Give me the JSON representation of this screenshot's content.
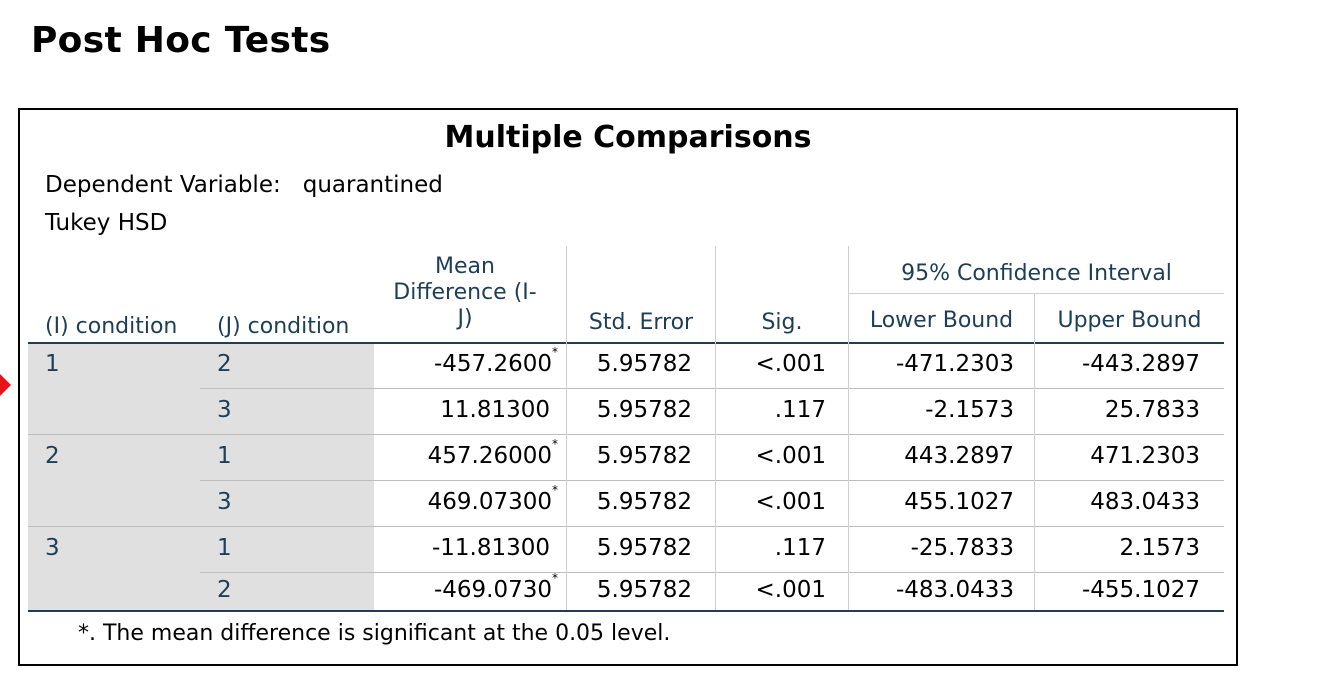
{
  "section_title": "Post Hoc Tests",
  "table": {
    "title": "Multiple Comparisons",
    "dependent_variable_label": "Dependent Variable:",
    "dependent_variable": "quarantined",
    "method": "Tukey HSD",
    "headers": {
      "i_condition": "(I) condition",
      "j_condition": "(J) condition",
      "mean_diff_1": "Mean",
      "mean_diff_2": "Difference (I-",
      "mean_diff_3": "J)",
      "std_error": "Std. Error",
      "sig": "Sig.",
      "ci_group": "95% Confidence Interval",
      "lower": "Lower Bound",
      "upper": "Upper Bound"
    },
    "groups": [
      {
        "i": "1",
        "rows": [
          {
            "j": "2",
            "mean_diff": "-457.2600",
            "star": "*",
            "std_error": "5.95782",
            "sig": "<.001",
            "lower": "-471.2303",
            "upper": "-443.2897"
          },
          {
            "j": "3",
            "mean_diff": "11.81300",
            "star": "",
            "std_error": "5.95782",
            "sig": ".117",
            "lower": "-2.1573",
            "upper": "25.7833"
          }
        ]
      },
      {
        "i": "2",
        "rows": [
          {
            "j": "1",
            "mean_diff": "457.26000",
            "star": "*",
            "std_error": "5.95782",
            "sig": "<.001",
            "lower": "443.2897",
            "upper": "471.2303"
          },
          {
            "j": "3",
            "mean_diff": "469.07300",
            "star": "*",
            "std_error": "5.95782",
            "sig": "<.001",
            "lower": "455.1027",
            "upper": "483.0433"
          }
        ]
      },
      {
        "i": "3",
        "rows": [
          {
            "j": "1",
            "mean_diff": "-11.81300",
            "star": "",
            "std_error": "5.95782",
            "sig": ".117",
            "lower": "-25.7833",
            "upper": "2.1573"
          },
          {
            "j": "2",
            "mean_diff": "-469.0730",
            "star": "*",
            "std_error": "5.95782",
            "sig": "<.001",
            "lower": "-483.0433",
            "upper": "-455.1027"
          }
        ]
      }
    ],
    "footnote": "*. The mean difference is significant at the 0.05 level."
  }
}
